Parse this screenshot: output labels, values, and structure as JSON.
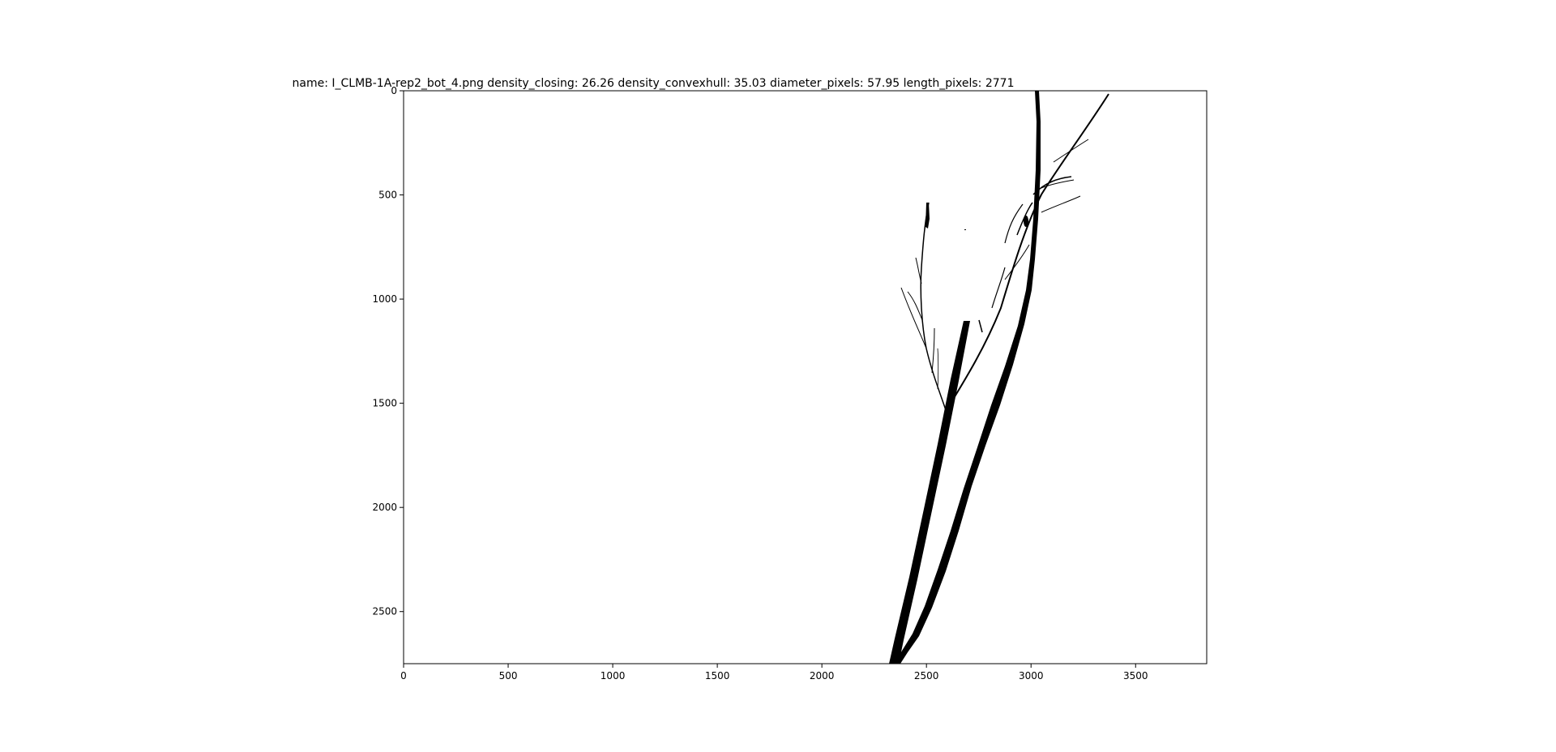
{
  "title": "name: I_CLMB-1A-rep2_bot_4.png    density_closing: 26.26    density_convexhull: 35.03    diameter_pixels: 57.95    length_pixels: 2771",
  "image_size": {
    "width": 3840,
    "height": 2750
  },
  "x_axis": {
    "ticks": [
      0,
      500,
      1000,
      1500,
      2000,
      2500,
      3000,
      3500
    ],
    "range": [
      0,
      3840
    ]
  },
  "y_axis": {
    "ticks": [
      0,
      500,
      1000,
      1500,
      2000,
      2500
    ],
    "range": [
      0,
      2750
    ],
    "inverted": true
  },
  "colors": {
    "background": "#ffffff",
    "foreground": "#000000",
    "axes": "#000000"
  },
  "depicted_content": "binary mask of plant roots"
}
